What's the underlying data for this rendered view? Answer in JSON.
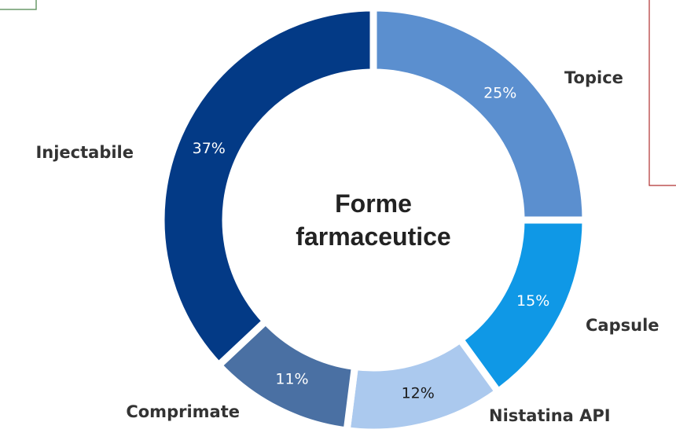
{
  "chart_data": {
    "type": "donut",
    "title": "Forme farmaceutice",
    "categories": [
      "Topice",
      "Capsule",
      "Nistatina API",
      "Comprimate",
      "Injectabile"
    ],
    "values": [
      25,
      15,
      12,
      11,
      37
    ],
    "value_labels": [
      "25%",
      "15%",
      "12%",
      "11%",
      "37%"
    ],
    "colors": [
      "#5b8fcf",
      "#0f98e6",
      "#abc9ee",
      "#4a70a3",
      "#033a86"
    ]
  }
}
